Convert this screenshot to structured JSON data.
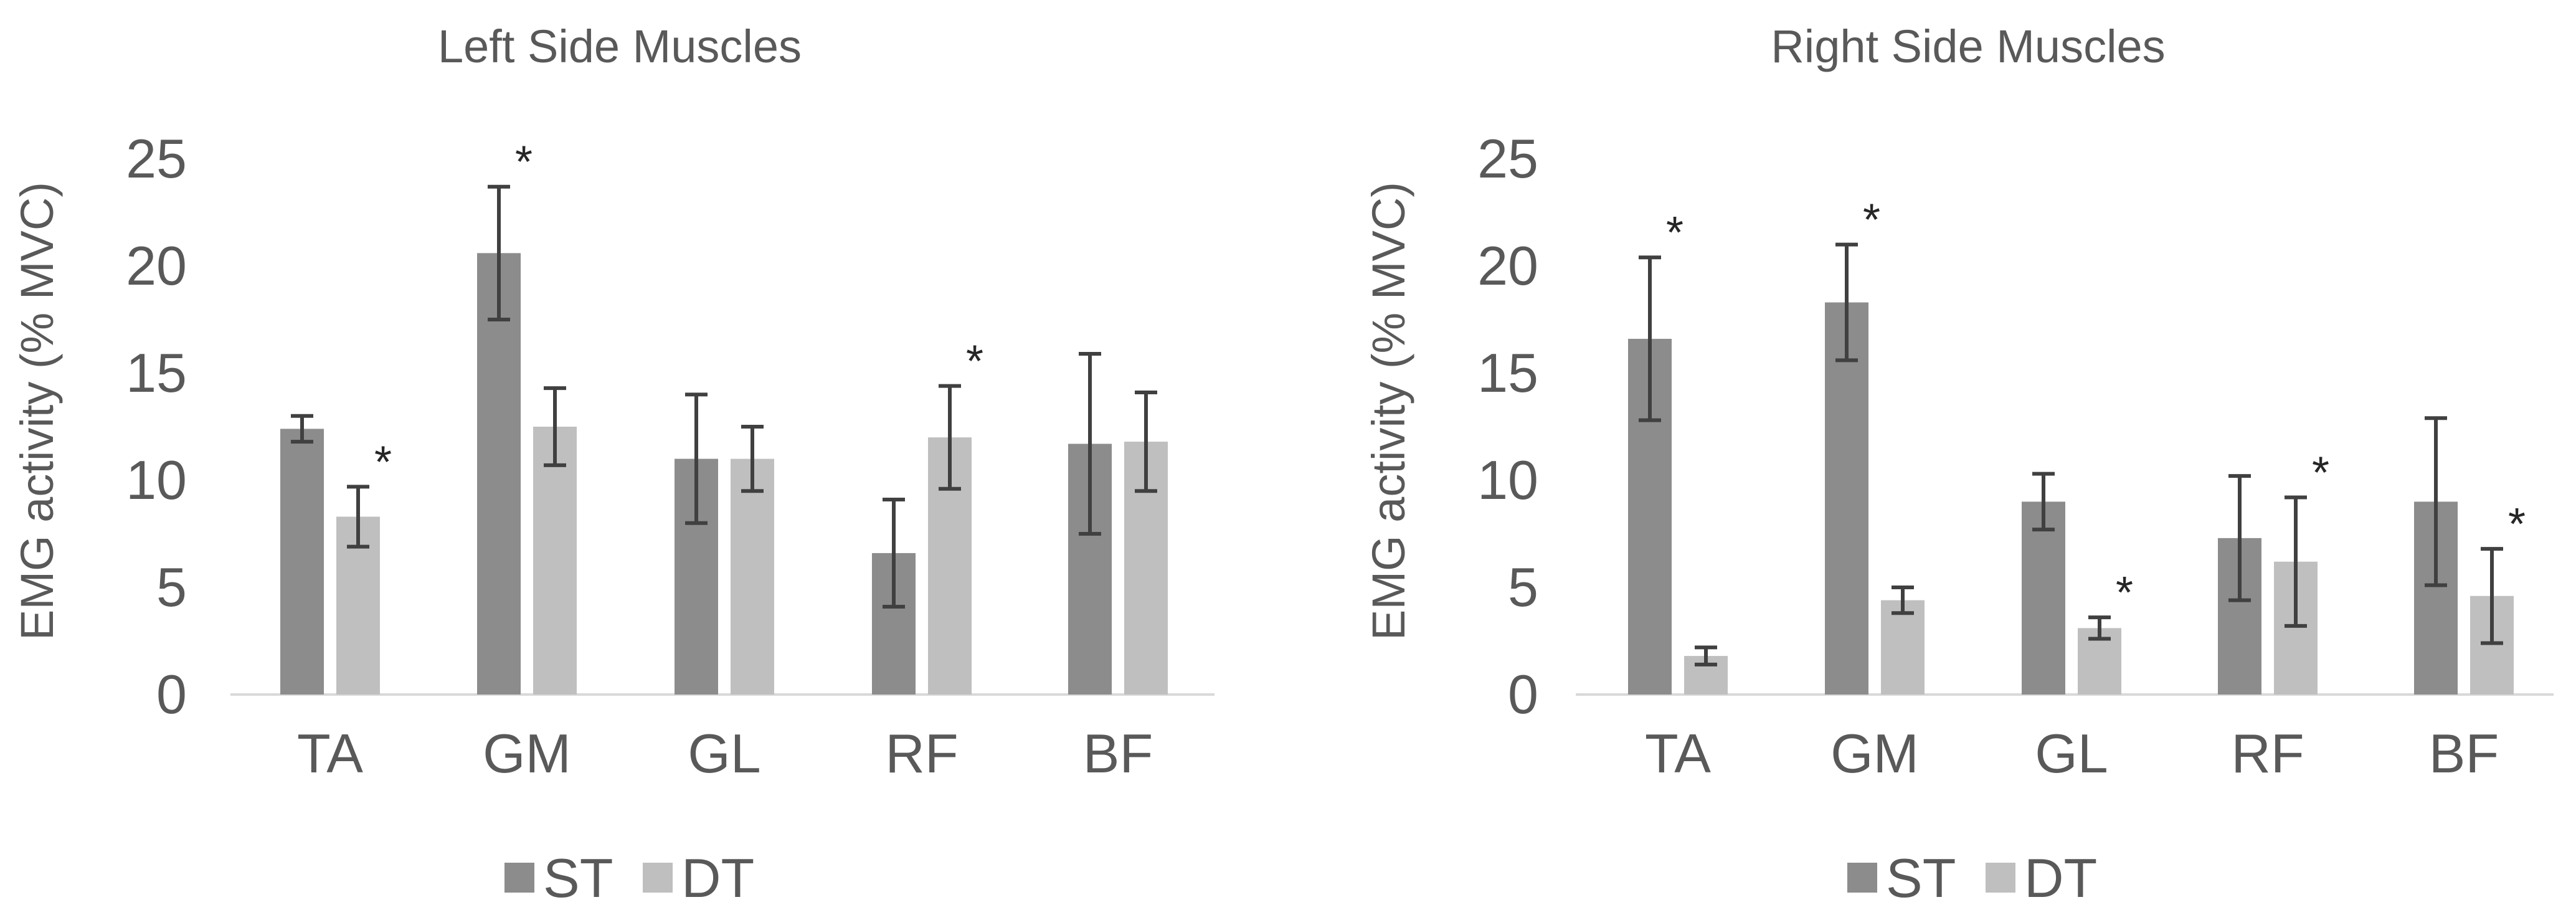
{
  "colors": {
    "st": "#8c8c8c",
    "dt": "#bfbfbf",
    "error_bar": "#404040",
    "axis": "#d9d9d9",
    "text": "#595959",
    "star": "#262626"
  },
  "chart_data": [
    {
      "type": "bar",
      "title": "Left Side Muscles",
      "xlabel": "",
      "ylabel": "EMG activity (% MVC)",
      "ylim": [
        0,
        25
      ],
      "yticks": [
        "0",
        "5",
        "10",
        "15",
        "20",
        "25"
      ],
      "grid": false,
      "legend": "bottom-center",
      "categories": [
        "TA",
        "GM",
        "GL",
        "RF",
        "BF"
      ],
      "series": [
        {
          "name": "ST",
          "values": [
            12.4,
            20.6,
            11.0,
            6.6,
            11.7
          ],
          "errors": [
            0.6,
            3.1,
            3.0,
            2.5,
            4.2
          ]
        },
        {
          "name": "DT",
          "values": [
            8.3,
            12.5,
            11.0,
            12.0,
            11.8
          ],
          "errors": [
            1.4,
            1.8,
            1.5,
            2.4,
            2.3
          ]
        }
      ],
      "significance": [
        {
          "category": "TA",
          "series": "DT",
          "label": "*"
        },
        {
          "category": "GM",
          "series": "ST",
          "label": "*"
        },
        {
          "category": "RF",
          "series": "DT",
          "label": "*"
        }
      ]
    },
    {
      "type": "bar",
      "title": "Right Side Muscles",
      "xlabel": "",
      "ylabel": "EMG activity (% MVC)",
      "ylim": [
        0,
        25
      ],
      "yticks": [
        "0",
        "5",
        "10",
        "15",
        "20",
        "25"
      ],
      "grid": false,
      "legend": "bottom-center",
      "categories": [
        "TA",
        "GM",
        "GL",
        "RF",
        "BF"
      ],
      "series": [
        {
          "name": "ST",
          "values": [
            16.6,
            18.3,
            9.0,
            7.3,
            9.0
          ],
          "errors": [
            3.8,
            2.7,
            1.3,
            2.9,
            3.9
          ]
        },
        {
          "name": "DT",
          "values": [
            1.8,
            4.4,
            3.1,
            6.2,
            4.6
          ],
          "errors": [
            0.4,
            0.6,
            0.5,
            3.0,
            2.2
          ]
        }
      ],
      "significance": [
        {
          "category": "TA",
          "series": "ST",
          "label": "*"
        },
        {
          "category": "GM",
          "series": "ST",
          "label": "*"
        },
        {
          "category": "GL",
          "series": "DT",
          "label": "*"
        },
        {
          "category": "RF",
          "series": "DT",
          "label": "*"
        },
        {
          "category": "BF",
          "series": "DT",
          "label": "*"
        }
      ]
    }
  ]
}
